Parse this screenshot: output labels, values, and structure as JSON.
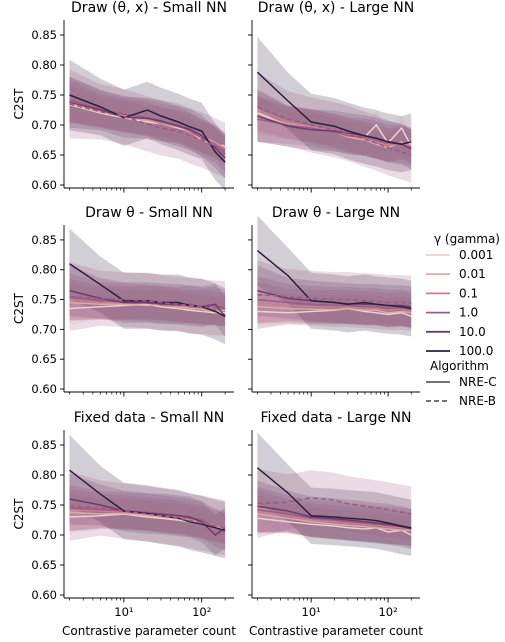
{
  "colors": {
    "gamma_palette": [
      "#edd1cb",
      "#dfaaa4",
      "#c97f95",
      "#9e5a85",
      "#6b3d6e",
      "#2d1e3e"
    ],
    "axis": "#000000",
    "background": "#ffffff"
  },
  "legend": {
    "gamma_title": "γ (gamma)",
    "gamma_items": [
      "0.001",
      "0.01",
      "0.1",
      "1.0",
      "10.0",
      "100.0"
    ],
    "algo_title": "Algorithm",
    "algo_items": [
      "NRE-C",
      "NRE-B"
    ],
    "placement": "right"
  },
  "chart_data": [
    {
      "type": "line",
      "title": "Draw (θ, x) - Small NN",
      "xlabel": "",
      "ylabel": "C2ST",
      "xscale": "log",
      "xlim": [
        1.7,
        260
      ],
      "ylim": [
        0.595,
        0.875
      ],
      "yticks": [
        "0.60",
        "0.65",
        "0.70",
        "0.75",
        "0.80",
        "0.85"
      ],
      "xticks": [],
      "x": [
        2,
        5,
        10,
        20,
        30,
        50,
        70,
        100,
        150,
        200
      ],
      "series": [
        {
          "gamma": "0.001",
          "algorithm": "NRE-C",
          "values": [
            0.734,
            0.72,
            0.712,
            0.705,
            0.702,
            0.695,
            0.69,
            0.675,
            0.668,
            0.665
          ]
        },
        {
          "gamma": "0.01",
          "algorithm": "NRE-C",
          "values": [
            0.736,
            0.722,
            0.715,
            0.708,
            0.704,
            0.698,
            0.688,
            0.68,
            0.67,
            0.662
          ]
        },
        {
          "gamma": "0.1",
          "algorithm": "NRE-C",
          "values": [
            0.74,
            0.724,
            0.716,
            0.71,
            0.702,
            0.697,
            0.692,
            0.682,
            0.672,
            0.66
          ]
        },
        {
          "gamma": "1.0",
          "algorithm": "NRE-C",
          "values": [
            0.742,
            0.726,
            0.718,
            0.712,
            0.705,
            0.7,
            0.69,
            0.678,
            0.668,
            0.652
          ]
        },
        {
          "gamma": "10.0",
          "algorithm": "NRE-C",
          "values": [
            0.738,
            0.725,
            0.713,
            0.711,
            0.707,
            0.698,
            0.693,
            0.682,
            0.662,
            0.645
          ]
        },
        {
          "gamma": "100.0",
          "algorithm": "NRE-C",
          "values": [
            0.75,
            0.73,
            0.712,
            0.725,
            0.715,
            0.705,
            0.697,
            0.69,
            0.655,
            0.638
          ]
        },
        {
          "gamma": "1.0",
          "algorithm": "NRE-B",
          "values": [
            0.735,
            0.722,
            0.714,
            0.702,
            0.695,
            0.69,
            0.682,
            0.675,
            0.665,
            0.658
          ]
        }
      ]
    },
    {
      "type": "line",
      "title": "Draw (θ, x) - Large NN",
      "xlabel": "",
      "ylabel": "",
      "xscale": "log",
      "xlim": [
        1.7,
        260
      ],
      "ylim": [
        0.595,
        0.875
      ],
      "yticks": [],
      "xticks": [],
      "x": [
        2,
        5,
        10,
        20,
        30,
        50,
        70,
        100,
        150,
        200
      ],
      "series": [
        {
          "gamma": "0.001",
          "algorithm": "NRE-C",
          "values": [
            0.72,
            0.7,
            0.695,
            0.69,
            0.685,
            0.68,
            0.7,
            0.67,
            0.695,
            0.665
          ]
        },
        {
          "gamma": "0.01",
          "algorithm": "NRE-C",
          "values": [
            0.715,
            0.702,
            0.696,
            0.688,
            0.68,
            0.675,
            0.668,
            0.662,
            0.672,
            0.66
          ]
        },
        {
          "gamma": "0.1",
          "algorithm": "NRE-C",
          "values": [
            0.725,
            0.705,
            0.698,
            0.69,
            0.683,
            0.678,
            0.672,
            0.666,
            0.67,
            0.665
          ]
        },
        {
          "gamma": "1.0",
          "algorithm": "NRE-C",
          "values": [
            0.71,
            0.7,
            0.695,
            0.688,
            0.682,
            0.68,
            0.675,
            0.67,
            0.668,
            0.662
          ]
        },
        {
          "gamma": "10.0",
          "algorithm": "NRE-C",
          "values": [
            0.715,
            0.698,
            0.692,
            0.69,
            0.686,
            0.682,
            0.678,
            0.672,
            0.668,
            0.66
          ]
        },
        {
          "gamma": "100.0",
          "algorithm": "NRE-C",
          "values": [
            0.788,
            0.74,
            0.705,
            0.698,
            0.69,
            0.682,
            0.678,
            0.672,
            0.668,
            0.672
          ]
        },
        {
          "gamma": "1.0",
          "algorithm": "NRE-B",
          "values": [
            0.73,
            0.71,
            0.7,
            0.692,
            0.686,
            0.676,
            0.67,
            0.662,
            0.655,
            0.65
          ]
        }
      ]
    },
    {
      "type": "line",
      "title": "Draw θ - Small NN",
      "xlabel": "",
      "ylabel": "C2ST",
      "xscale": "log",
      "xlim": [
        1.7,
        260
      ],
      "ylim": [
        0.595,
        0.875
      ],
      "yticks": [
        "0.60",
        "0.65",
        "0.70",
        "0.75",
        "0.80",
        "0.85"
      ],
      "xticks": [],
      "x": [
        2,
        5,
        10,
        20,
        30,
        50,
        70,
        100,
        150,
        200
      ],
      "series": [
        {
          "gamma": "0.001",
          "algorithm": "NRE-C",
          "values": [
            0.735,
            0.738,
            0.74,
            0.742,
            0.738,
            0.735,
            0.732,
            0.73,
            0.728,
            0.728
          ]
        },
        {
          "gamma": "0.01",
          "algorithm": "NRE-C",
          "values": [
            0.745,
            0.742,
            0.742,
            0.74,
            0.742,
            0.738,
            0.735,
            0.734,
            0.73,
            0.732
          ]
        },
        {
          "gamma": "0.1",
          "algorithm": "NRE-C",
          "values": [
            0.75,
            0.745,
            0.744,
            0.745,
            0.743,
            0.74,
            0.738,
            0.738,
            0.735,
            0.734
          ]
        },
        {
          "gamma": "1.0",
          "algorithm": "NRE-C",
          "values": [
            0.755,
            0.748,
            0.746,
            0.744,
            0.742,
            0.74,
            0.742,
            0.738,
            0.74,
            0.735
          ]
        },
        {
          "gamma": "10.0",
          "algorithm": "NRE-C",
          "values": [
            0.765,
            0.752,
            0.745,
            0.745,
            0.743,
            0.742,
            0.74,
            0.738,
            0.742,
            0.722
          ]
        },
        {
          "gamma": "100.0",
          "algorithm": "NRE-C",
          "values": [
            0.81,
            0.775,
            0.748,
            0.748,
            0.745,
            0.745,
            0.74,
            0.738,
            0.73,
            0.722
          ]
        },
        {
          "gamma": "1.0",
          "algorithm": "NRE-B",
          "values": [
            0.755,
            0.752,
            0.75,
            0.748,
            0.745,
            0.742,
            0.74,
            0.738,
            0.736,
            0.735
          ]
        }
      ]
    },
    {
      "type": "line",
      "title": "Draw θ - Large NN",
      "xlabel": "",
      "ylabel": "",
      "xscale": "log",
      "xlim": [
        1.7,
        260
      ],
      "ylim": [
        0.595,
        0.875
      ],
      "yticks": [],
      "xticks": [],
      "x": [
        2,
        5,
        10,
        20,
        30,
        50,
        70,
        100,
        150,
        200
      ],
      "series": [
        {
          "gamma": "0.001",
          "algorithm": "NRE-C",
          "values": [
            0.73,
            0.728,
            0.73,
            0.732,
            0.735,
            0.73,
            0.728,
            0.725,
            0.728,
            0.722
          ]
        },
        {
          "gamma": "0.01",
          "algorithm": "NRE-C",
          "values": [
            0.738,
            0.735,
            0.734,
            0.733,
            0.735,
            0.732,
            0.732,
            0.728,
            0.73,
            0.728
          ]
        },
        {
          "gamma": "0.1",
          "algorithm": "NRE-C",
          "values": [
            0.745,
            0.74,
            0.738,
            0.738,
            0.738,
            0.736,
            0.735,
            0.732,
            0.735,
            0.73
          ]
        },
        {
          "gamma": "1.0",
          "algorithm": "NRE-C",
          "values": [
            0.75,
            0.745,
            0.742,
            0.74,
            0.74,
            0.738,
            0.738,
            0.735,
            0.736,
            0.733
          ]
        },
        {
          "gamma": "10.0",
          "algorithm": "NRE-C",
          "values": [
            0.765,
            0.752,
            0.748,
            0.745,
            0.743,
            0.742,
            0.742,
            0.74,
            0.74,
            0.738
          ]
        },
        {
          "gamma": "100.0",
          "algorithm": "NRE-C",
          "values": [
            0.832,
            0.79,
            0.748,
            0.745,
            0.742,
            0.745,
            0.742,
            0.74,
            0.738,
            0.735
          ]
        },
        {
          "gamma": "1.0",
          "algorithm": "NRE-B",
          "values": [
            0.758,
            0.755,
            0.752,
            0.75,
            0.75,
            0.748,
            0.747,
            0.745,
            0.745,
            0.744
          ]
        }
      ]
    },
    {
      "type": "line",
      "title": "Fixed data - Small NN",
      "xlabel": "Contrastive parameter count",
      "ylabel": "C2ST",
      "xscale": "log",
      "xlim": [
        1.7,
        260
      ],
      "ylim": [
        0.595,
        0.875
      ],
      "yticks": [
        "0.60",
        "0.65",
        "0.70",
        "0.75",
        "0.80",
        "0.85"
      ],
      "xticks": [
        "10¹",
        "10²"
      ],
      "x": [
        2,
        5,
        10,
        20,
        30,
        50,
        70,
        100,
        150,
        200
      ],
      "series": [
        {
          "gamma": "0.001",
          "algorithm": "NRE-C",
          "values": [
            0.73,
            0.732,
            0.735,
            0.73,
            0.728,
            0.725,
            0.722,
            0.718,
            0.712,
            0.71
          ]
        },
        {
          "gamma": "0.01",
          "algorithm": "NRE-C",
          "values": [
            0.738,
            0.735,
            0.736,
            0.733,
            0.73,
            0.728,
            0.725,
            0.72,
            0.715,
            0.712
          ]
        },
        {
          "gamma": "0.1",
          "algorithm": "NRE-C",
          "values": [
            0.742,
            0.74,
            0.738,
            0.735,
            0.732,
            0.73,
            0.726,
            0.722,
            0.716,
            0.712
          ]
        },
        {
          "gamma": "1.0",
          "algorithm": "NRE-C",
          "values": [
            0.745,
            0.742,
            0.74,
            0.738,
            0.735,
            0.732,
            0.728,
            0.725,
            0.712,
            0.705
          ]
        },
        {
          "gamma": "10.0",
          "algorithm": "NRE-C",
          "values": [
            0.76,
            0.75,
            0.74,
            0.736,
            0.735,
            0.732,
            0.73,
            0.722,
            0.7,
            0.712
          ]
        },
        {
          "gamma": "100.0",
          "algorithm": "NRE-C",
          "values": [
            0.808,
            0.768,
            0.74,
            0.736,
            0.732,
            0.728,
            0.722,
            0.718,
            0.712,
            0.708
          ]
        },
        {
          "gamma": "1.0",
          "algorithm": "NRE-B",
          "values": [
            0.748,
            0.745,
            0.74,
            0.735,
            0.732,
            0.728,
            0.724,
            0.72,
            0.715,
            0.712
          ]
        }
      ]
    },
    {
      "type": "line",
      "title": "Fixed data - Large NN",
      "xlabel": "Contrastive parameter count",
      "ylabel": "",
      "xscale": "log",
      "xlim": [
        1.7,
        260
      ],
      "ylim": [
        0.595,
        0.875
      ],
      "yticks": [],
      "xticks": [
        "10¹",
        "10²"
      ],
      "x": [
        2,
        5,
        10,
        20,
        30,
        50,
        70,
        100,
        150,
        200
      ],
      "series": [
        {
          "gamma": "0.001",
          "algorithm": "NRE-C",
          "values": [
            0.728,
            0.722,
            0.718,
            0.715,
            0.712,
            0.71,
            0.712,
            0.705,
            0.708,
            0.7
          ]
        },
        {
          "gamma": "0.01",
          "algorithm": "NRE-C",
          "values": [
            0.735,
            0.728,
            0.722,
            0.718,
            0.716,
            0.714,
            0.712,
            0.71,
            0.708,
            0.708
          ]
        },
        {
          "gamma": "0.1",
          "algorithm": "NRE-C",
          "values": [
            0.74,
            0.732,
            0.725,
            0.722,
            0.72,
            0.718,
            0.716,
            0.714,
            0.712,
            0.71
          ]
        },
        {
          "gamma": "1.0",
          "algorithm": "NRE-C",
          "values": [
            0.742,
            0.735,
            0.728,
            0.725,
            0.722,
            0.72,
            0.718,
            0.716,
            0.714,
            0.712
          ]
        },
        {
          "gamma": "10.0",
          "algorithm": "NRE-C",
          "values": [
            0.748,
            0.74,
            0.73,
            0.727,
            0.725,
            0.722,
            0.72,
            0.718,
            0.714,
            0.71
          ]
        },
        {
          "gamma": "100.0",
          "algorithm": "NRE-C",
          "values": [
            0.812,
            0.77,
            0.732,
            0.73,
            0.728,
            0.726,
            0.724,
            0.72,
            0.715,
            0.712
          ]
        },
        {
          "gamma": "1.0",
          "algorithm": "NRE-B",
          "values": [
            0.752,
            0.755,
            0.762,
            0.758,
            0.752,
            0.748,
            0.745,
            0.742,
            0.738,
            0.735
          ]
        }
      ]
    }
  ]
}
